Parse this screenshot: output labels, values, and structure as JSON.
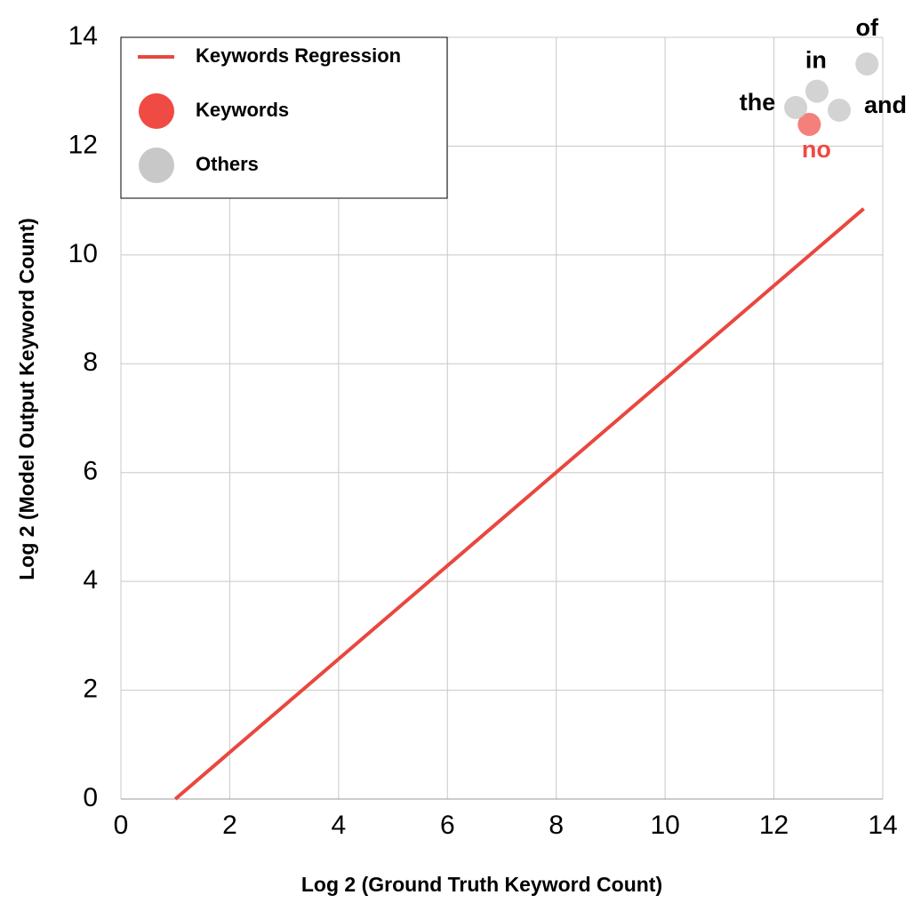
{
  "chart_data": {
    "type": "scatter",
    "x_label": "Log 2 (Ground Truth Keyword Count)",
    "y_label": "Log 2 (Model Output Keyword Count)",
    "xlim": [
      0,
      14
    ],
    "ylim": [
      0,
      14
    ],
    "xticks": [
      0,
      2,
      4,
      6,
      8,
      10,
      12,
      14
    ],
    "yticks": [
      0,
      2,
      4,
      6,
      8,
      10,
      12,
      14
    ],
    "grid": true,
    "legend": "upper left",
    "series": [
      {
        "name": "Keywords Regression",
        "kind": "line",
        "color": "#e8483f",
        "x": [
          1.0,
          13.65
        ],
        "values": [
          0,
          10.85
        ]
      },
      {
        "name": "Keywords",
        "kind": "scatter",
        "color": "#ef4a43",
        "x": [
          12.65
        ],
        "values": [
          12.4
        ],
        "labels": [
          "no"
        ]
      },
      {
        "name": "Others",
        "kind": "scatter",
        "color": "#c8c8c8",
        "x": [
          12.4,
          12.79,
          13.2,
          13.71
        ],
        "values": [
          12.71,
          13.01,
          12.66,
          13.51
        ],
        "labels": [
          "the",
          "in",
          "and",
          "of"
        ]
      }
    ]
  }
}
